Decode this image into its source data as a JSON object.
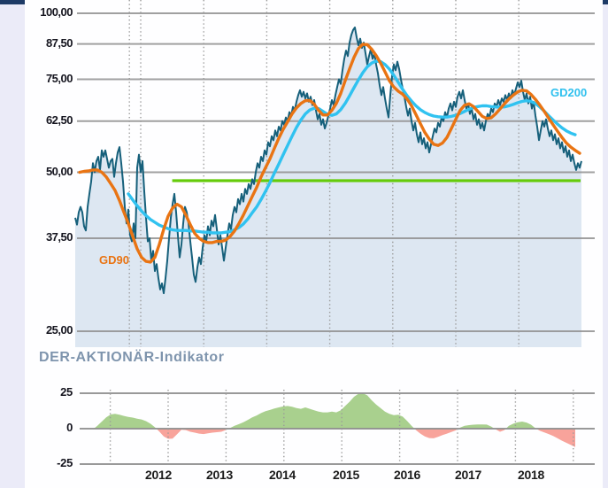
{
  "page": {
    "side_strip_color": "#ebebf8",
    "top_bar_color": "#1d3a66",
    "background": "#fefeff"
  },
  "main_chart": {
    "y_tick_labels": [
      "100,00",
      "87,50",
      "75,00",
      "62,50",
      "50,00",
      "37,50",
      "25,00"
    ],
    "y_tick_values": [
      100,
      87.5,
      75,
      62.5,
      50,
      37.5,
      25
    ],
    "labels": {
      "gd90": "GD90",
      "gd200": "GD200"
    },
    "colors": {
      "price": "#16607b",
      "area_fill": "#dde7f2",
      "gd90": "#e97413",
      "gd200": "#30c2f0",
      "signal": "#65cb0b",
      "grid": "#909090",
      "dotted": "#9a9a9a"
    }
  },
  "indicator": {
    "title": "DER-AKTIONÄR-Indikator",
    "y_tick_labels": [
      "25",
      "0",
      "-25"
    ],
    "y_tick_values": [
      25,
      0,
      -25
    ],
    "x_year_labels": [
      "2012",
      "2013",
      "2014",
      "2015",
      "2016",
      "2017",
      "2018"
    ],
    "colors": {
      "positive": "#a9d08e",
      "negative": "#f8a39b",
      "grid": "#8f8f8f"
    }
  },
  "chart_data": [
    {
      "type": "line",
      "title": "",
      "y_scale": "log",
      "ylim": [
        23,
        106
      ],
      "xlim": [
        2010.95,
        2019.2
      ],
      "y_ticks": [
        100,
        87.5,
        75,
        62.5,
        50,
        37.5,
        25
      ],
      "x_gridline_years": [
        2011.82,
        2012,
        2013,
        2014,
        2015,
        2016,
        2017,
        2018
      ],
      "grid": true,
      "legend_position": "inline-labels",
      "series": [
        {
          "name": "price",
          "color": "#16607b",
          "fill": "#dde7f2",
          "x_start": 2010.961,
          "x_step": 0.02809,
          "values": [
            41,
            39.8,
            42,
            43,
            42,
            39.5,
            38.8,
            43,
            45.5,
            48,
            52,
            50,
            52.5,
            53.5,
            50.5,
            55,
            53.5,
            55,
            53,
            51,
            52.5,
            53,
            49,
            52,
            54.5,
            55.8,
            52,
            48,
            43,
            40,
            42.5,
            38,
            37,
            40,
            37.5,
            51,
            54,
            50,
            52.5,
            46,
            41,
            37,
            37.5,
            34,
            35.5,
            32.5,
            33.5,
            31.5,
            30,
            30.8,
            29.5,
            31.5,
            34,
            37.5,
            41,
            43.5,
            45.5,
            42,
            38,
            34.5,
            36.5,
            40,
            43,
            42,
            40,
            37,
            34.5,
            32,
            31,
            33,
            34.5,
            33.5,
            36,
            38,
            37,
            39.5,
            38,
            40.5,
            39.5,
            41.5,
            39,
            36.5,
            38,
            36,
            34,
            36,
            38,
            40,
            39,
            41.5,
            43,
            42,
            44.5,
            43.5,
            45.5,
            44,
            46.5,
            45.5,
            47.5,
            46.5,
            48.5,
            47.5,
            50,
            52,
            51,
            53.5,
            52.5,
            55,
            54,
            57,
            56,
            58.5,
            57.5,
            60,
            58.5,
            61,
            60,
            62.5,
            61.5,
            63.5,
            62.5,
            65,
            64,
            66.5,
            65.5,
            68,
            70,
            71.5,
            69.5,
            71,
            69,
            70.5,
            68,
            69.5,
            67,
            68.5,
            65.5,
            63,
            64.5,
            61.5,
            63,
            60.5,
            62,
            64,
            66,
            68.5,
            67,
            70,
            72.5,
            75,
            73.5,
            78,
            82,
            85,
            83,
            88,
            91,
            93,
            94,
            90,
            87,
            89.5,
            86,
            88,
            84,
            80,
            83,
            85.5,
            82,
            84,
            80,
            77,
            73,
            70,
            72.5,
            69,
            66,
            63.5,
            70,
            76,
            80,
            78,
            81,
            78.5,
            75,
            72,
            69.5,
            66.5,
            64,
            66,
            62.5,
            60,
            62,
            59,
            57,
            59.5,
            56.5,
            58,
            55.5,
            57,
            54.5,
            56.5,
            58.5,
            60.5,
            59.5,
            62,
            61,
            63.5,
            62.5,
            65,
            63.5,
            66,
            67.5,
            65.5,
            68,
            66.5,
            69.5,
            71,
            69,
            71.5,
            68.5,
            66,
            67.5,
            64.5,
            66,
            63,
            64.5,
            61.5,
            63,
            60.5,
            62,
            60,
            62.5,
            64.5,
            63.5,
            66,
            65,
            67.5,
            66.5,
            68.5,
            67,
            69,
            68,
            70,
            68.5,
            70.5,
            69,
            71.5,
            70,
            72,
            74,
            72.5,
            74.5,
            71,
            68.5,
            70.5,
            67.5,
            69.5,
            66,
            68,
            64,
            61,
            57.5,
            60,
            62.5,
            61,
            63,
            60.5,
            58.5,
            60,
            57.5,
            59,
            56.5,
            58,
            55.5,
            57,
            54.5,
            56,
            53.5,
            55,
            52.5,
            54,
            52,
            50.5,
            52,
            51,
            52.5
          ]
        },
        {
          "name": "GD90",
          "color": "#e97413",
          "x_start": 2011.031,
          "x_step": 0.07022,
          "values": [
            50,
            50.2,
            50.3,
            50.5,
            50.5,
            50,
            49,
            47.6,
            46.2,
            44.2,
            42,
            40,
            37.8,
            35.8,
            34.5,
            33.9,
            33.8,
            34.5,
            36.5,
            39,
            41.3,
            42.8,
            43.5,
            43,
            41.5,
            39.8,
            38.3,
            37.5,
            37,
            36.8,
            36.8,
            37,
            37,
            37.2,
            37.8,
            38.7,
            40,
            41.5,
            43.2,
            45,
            46.8,
            49,
            51,
            53,
            55.5,
            58,
            60.3,
            62.3,
            64.5,
            66.2,
            67.5,
            68.3,
            68.4,
            67.3,
            65.5,
            64.2,
            64.2,
            65.5,
            67.5,
            70.5,
            74.5,
            78.5,
            82.5,
            85.8,
            87.4,
            87.2,
            85.5,
            83.2,
            80.5,
            77.5,
            74.5,
            72.5,
            71.2,
            70.3,
            68.8,
            66.8,
            64.3,
            61.8,
            59.5,
            57.8,
            56.5,
            56.2,
            56.8,
            58.2,
            60.5,
            63,
            65.5,
            67,
            67.4,
            66.6,
            65.2,
            63.8,
            63.2,
            63.4,
            64.5,
            65.9,
            67.4,
            68.8,
            70,
            71,
            71.5,
            71.3,
            70.2,
            68.7,
            67,
            65.2,
            63.3,
            61.5,
            59.8,
            58.2,
            56.8,
            55.8,
            55,
            54.3
          ]
        },
        {
          "name": "GD200",
          "color": "#30c2f0",
          "x_start": 2011.803,
          "x_step": 0.07022,
          "values": [
            45.5,
            44.3,
            43.2,
            42.2,
            41.4,
            40.7,
            40.2,
            39.7,
            39.4,
            39.1,
            38.9,
            38.8,
            38.8,
            38.8,
            38.7,
            38.7,
            38.6,
            38.5,
            38.5,
            38.4,
            38.4,
            38.4,
            38.5,
            38.6,
            38.9,
            39.3,
            39.9,
            40.8,
            41.9,
            43,
            44.4,
            46,
            47.8,
            49.8,
            51.8,
            54,
            56.2,
            58.5,
            60.8,
            62.8,
            64.5,
            65.6,
            66.1,
            66,
            65.2,
            64.4,
            64.1,
            64.5,
            65.7,
            67.5,
            69.8,
            72.3,
            74.8,
            77.2,
            79.2,
            80.5,
            81.2,
            81,
            80,
            78.4,
            76.3,
            74,
            71.8,
            69.8,
            68.2,
            66.8,
            65.7,
            64.9,
            64.3,
            63.9,
            63.7,
            63.6,
            63.6,
            63.8,
            64.1,
            64.6,
            65.2,
            65.8,
            66.3,
            66.6,
            66.8,
            66.8,
            66.6,
            66.5,
            66.4,
            66.5,
            66.8,
            67.2,
            67.7,
            68.1,
            68.3,
            68.1,
            67.5,
            66.5,
            65.3,
            64,
            62.8,
            61.7,
            60.7,
            59.9,
            59.3,
            58.9
          ]
        },
        {
          "name": "signal-line",
          "color": "#65cb0b",
          "value": 48.2,
          "x_start": 2012.5,
          "x_end": 2018.98
        }
      ]
    },
    {
      "type": "area",
      "title": "DER-AKTIONÄR-Indikator",
      "ylim": [
        -30,
        30
      ],
      "y_ticks": [
        25,
        0,
        -25
      ],
      "x_tick_years": [
        2012,
        2013,
        2014,
        2015,
        2016,
        2017,
        2018
      ],
      "x_gridline_years": [
        2011,
        2012,
        2013,
        2014,
        2015,
        2016,
        2017,
        2018,
        2019
      ],
      "series": [
        {
          "name": "indikator",
          "pos_color": "#a9d08e",
          "neg_color": "#f8a39b",
          "x_start": 2010.7,
          "x_step": 0.07645,
          "values": [
            -0.5,
            2,
            5,
            8,
            10,
            10.5,
            9.8,
            9,
            8.3,
            7.8,
            7,
            6.5,
            5.3,
            3.5,
            1,
            -2,
            -5.5,
            -7.2,
            -7,
            -4,
            -0.8,
            -1,
            -2.2,
            -2.8,
            -3.5,
            -3.8,
            -3.3,
            -2.8,
            -2.5,
            -2.2,
            -1,
            0.5,
            2,
            3.2,
            4.5,
            6.2,
            8,
            9.3,
            11,
            12.3,
            13.2,
            14.2,
            15,
            15.7,
            16,
            15.5,
            14.5,
            14,
            15,
            14,
            13,
            12,
            11.5,
            11.5,
            12,
            11.5,
            13,
            16,
            19,
            22.5,
            24.6,
            25,
            23.5,
            20,
            17,
            14.5,
            12,
            10.5,
            9.5,
            9.8,
            8.5,
            5.5,
            2,
            -1,
            -3.5,
            -5.5,
            -6.6,
            -6.8,
            -5.8,
            -4.5,
            -3.5,
            -2.3,
            -1.2,
            0.8,
            2,
            2.5,
            2.8,
            3,
            3,
            2.9,
            1.5,
            -0.5,
            -2.2,
            -1,
            2,
            3.5,
            4.5,
            5,
            4.3,
            2.8,
            0.3,
            -1.5,
            -2.6,
            -3.8,
            -5.2,
            -6.8,
            -8.5,
            -10,
            -11.5,
            -13
          ]
        }
      ]
    }
  ]
}
